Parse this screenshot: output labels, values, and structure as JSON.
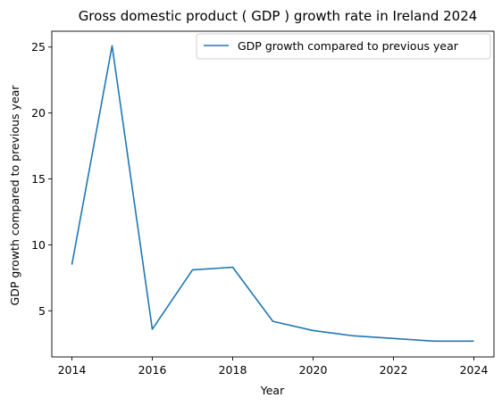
{
  "chart_data": {
    "type": "line",
    "title": "Gross domestic product ( GDP ) growth rate in Ireland 2024",
    "xlabel": "Year",
    "ylabel": "GDP growth compared to previous year",
    "x": [
      2014,
      2015,
      2016,
      2017,
      2018,
      2019,
      2020,
      2021,
      2022,
      2023,
      2024
    ],
    "series": [
      {
        "name": "GDP growth compared to previous year",
        "color": "#1f77b4",
        "values": [
          8.5,
          25.1,
          3.6,
          8.1,
          8.3,
          4.2,
          3.5,
          3.1,
          2.9,
          2.7,
          2.7
        ]
      }
    ],
    "xticks": [
      2014,
      2016,
      2018,
      2020,
      2022,
      2024
    ],
    "yticks": [
      5,
      10,
      15,
      20,
      25
    ],
    "xlim": [
      2013.5,
      2024.5
    ],
    "ylim": [
      1.5,
      26.2
    ],
    "grid": false,
    "legend": "upper-right"
  }
}
